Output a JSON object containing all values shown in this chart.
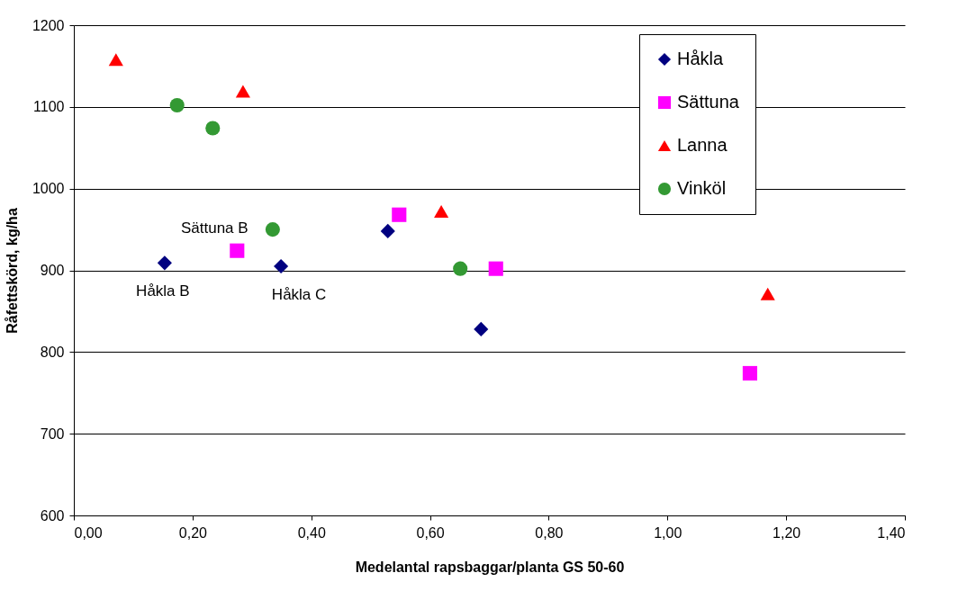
{
  "chart_data": {
    "type": "scatter",
    "xlabel": "Medelantal rapsbaggar/planta GS 50-60",
    "ylabel": "Råfettskörd, kg/ha",
    "xlim": [
      0,
      1.4
    ],
    "xticks": [
      {
        "value": 0,
        "label": "0,00"
      },
      {
        "value": 0.2,
        "label": "0,20"
      },
      {
        "value": 0.4,
        "label": "0,40"
      },
      {
        "value": 0.6,
        "label": "0,60"
      },
      {
        "value": 0.8,
        "label": "0,80"
      },
      {
        "value": 1.0,
        "label": "1,00"
      },
      {
        "value": 1.2,
        "label": "1,20"
      },
      {
        "value": 1.4,
        "label": "1,40"
      }
    ],
    "ylim": [
      600,
      1200
    ],
    "yticks": [
      600,
      700,
      800,
      900,
      1000,
      1100,
      1200
    ],
    "grid": "y",
    "legend": "top right",
    "series": [
      {
        "name": "Håkla",
        "color": "#000080",
        "marker": "diamond",
        "x": [
          0.153,
          0.349,
          0.529,
          0.686
        ],
        "values": [
          909,
          905,
          948,
          828
        ]
      },
      {
        "name": "Sättuna",
        "color": "#ff00ff",
        "marker": "square",
        "x": [
          0.275,
          0.548,
          0.711,
          1.139
        ],
        "values": [
          924,
          968,
          902,
          774
        ]
      },
      {
        "name": "Lanna",
        "color": "#ff0000",
        "marker": "triangle",
        "x": [
          0.071,
          0.285,
          0.619,
          1.169
        ],
        "values": [
          1158,
          1119,
          972,
          871
        ]
      },
      {
        "name": "Vinköl",
        "color": "#339933",
        "marker": "circle",
        "x": [
          0.174,
          0.234,
          0.335,
          0.651
        ],
        "values": [
          1102,
          1074,
          950,
          902
        ]
      }
    ],
    "annotations": [
      {
        "text": "Sättuna B",
        "x": 0.275,
        "y": 924
      },
      {
        "text": "Håkla B",
        "x": 0.153,
        "y": 909
      },
      {
        "text": "Håkla C",
        "x": 0.349,
        "y": 905
      }
    ]
  }
}
